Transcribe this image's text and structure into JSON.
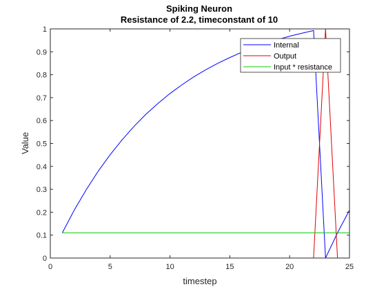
{
  "chart_data": {
    "type": "line",
    "title": "Spiking Neuron",
    "subtitle": "Resistance of 2.2, timeconstant of 10",
    "xlabel": "timestep",
    "ylabel": "Value",
    "xlim": [
      0,
      25
    ],
    "ylim": [
      0,
      1
    ],
    "xticks": [
      0,
      5,
      10,
      15,
      20,
      25
    ],
    "yticks": [
      0,
      0.1,
      0.2,
      0.3,
      0.4,
      0.5,
      0.6,
      0.7,
      0.8,
      0.9,
      1
    ],
    "grid": false,
    "legend_position": "top-right",
    "series": [
      {
        "name": "Internal",
        "color": "#0000ff",
        "x": [
          1,
          2,
          3,
          4,
          5,
          6,
          7,
          8,
          9,
          10,
          11,
          12,
          13,
          14,
          15,
          16,
          17,
          18,
          19,
          20,
          21,
          22,
          23,
          24,
          25
        ],
        "y": [
          0.11,
          0.209,
          0.298,
          0.379,
          0.451,
          0.516,
          0.575,
          0.628,
          0.675,
          0.718,
          0.756,
          0.791,
          0.822,
          0.85,
          0.875,
          0.898,
          0.918,
          0.937,
          0.953,
          0.968,
          0.981,
          0.993,
          0,
          0.11,
          0.209
        ]
      },
      {
        "name": "Output",
        "color": "#dd0000",
        "x": [
          1,
          2,
          3,
          4,
          5,
          6,
          7,
          8,
          9,
          10,
          11,
          12,
          13,
          14,
          15,
          16,
          17,
          18,
          19,
          20,
          21,
          22,
          23,
          24,
          25
        ],
        "y": [
          0,
          0,
          0,
          0,
          0,
          0,
          0,
          0,
          0,
          0,
          0,
          0,
          0,
          0,
          0,
          0,
          0,
          0,
          0,
          0,
          0,
          0,
          1,
          0,
          0
        ]
      },
      {
        "name": "Input * resistance",
        "color": "#00cc00",
        "x": [
          1,
          25
        ],
        "y": [
          0.11,
          0.11
        ]
      }
    ]
  }
}
